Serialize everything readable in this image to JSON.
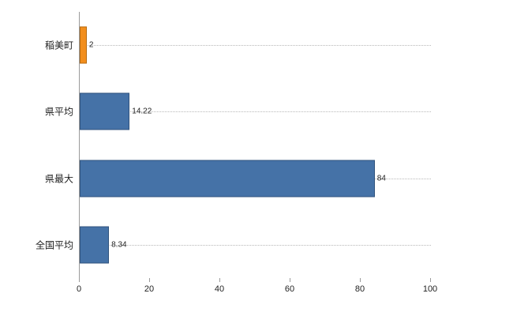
{
  "chart_data": {
    "type": "bar",
    "orientation": "horizontal",
    "title": "",
    "xlabel": "",
    "ylabel": "",
    "categories": [
      "稲美町",
      "県平均",
      "県最大",
      "全国平均"
    ],
    "values": [
      2,
      14.22,
      84,
      8.34
    ],
    "value_labels": [
      "2",
      "14.22",
      "84",
      "8.34"
    ],
    "bar_fill_colors": [
      "#f28e1c",
      "#4572a7",
      "#4572a7",
      "#4572a7"
    ],
    "bar_border_colors": [
      "#b56a10",
      "#30537d",
      "#30537d",
      "#30537d"
    ],
    "xlim": [
      0,
      100
    ],
    "x_ticks": [
      0,
      20,
      40,
      60,
      80,
      100
    ],
    "legend": "none",
    "grid": "dotted-horizontal-leader-lines",
    "background_color": "#ffffff"
  }
}
